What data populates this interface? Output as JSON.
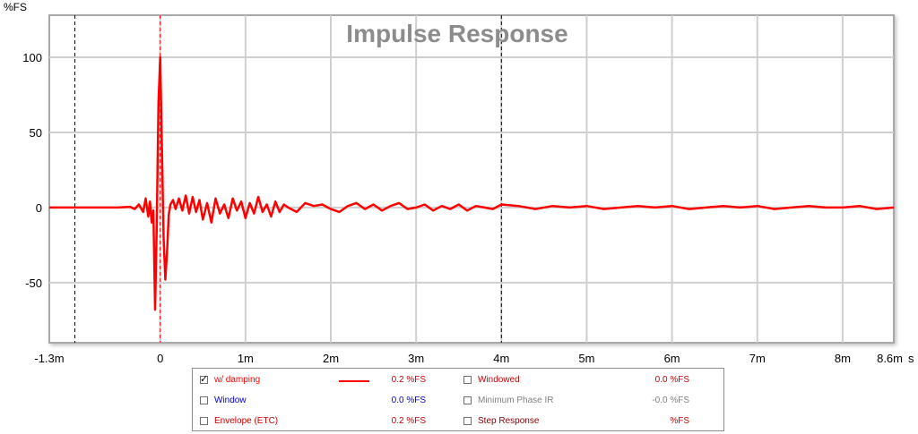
{
  "chart_data": {
    "type": "line",
    "title": "Impulse Response",
    "ylabel": "%FS",
    "xlabel": "",
    "xunit": "s",
    "xlim": [
      -1.3,
      8.6
    ],
    "ylim": [
      -90,
      128
    ],
    "xticks": [
      {
        "v": -1.3,
        "label": "-1.3m"
      },
      {
        "v": 0,
        "label": "0"
      },
      {
        "v": 1,
        "label": "1m"
      },
      {
        "v": 2,
        "label": "2m"
      },
      {
        "v": 3,
        "label": "3m"
      },
      {
        "v": 4,
        "label": "4m"
      },
      {
        "v": 5,
        "label": "5m"
      },
      {
        "v": 6,
        "label": "6m"
      },
      {
        "v": 7,
        "label": "7m"
      },
      {
        "v": 8,
        "label": "8m"
      },
      {
        "v": 8.6,
        "label": "8.6m"
      }
    ],
    "yticks": [
      {
        "v": 100,
        "label": "100"
      },
      {
        "v": 50,
        "label": "50"
      },
      {
        "v": 0,
        "label": "0"
      },
      {
        "v": -50,
        "label": "-50"
      }
    ],
    "grid": true,
    "markers": [
      {
        "x": -1.0,
        "color": "#000000"
      },
      {
        "x": 0,
        "color": "#ff0000"
      },
      {
        "x": 4.0,
        "color": "#000000"
      }
    ],
    "series": [
      {
        "name": "w/ damping",
        "color": "#ff0000",
        "x": [
          -1.3,
          -1.0,
          -0.5,
          -0.35,
          -0.3,
          -0.25,
          -0.2,
          -0.17,
          -0.14,
          -0.12,
          -0.1,
          -0.08,
          -0.06,
          -0.04,
          -0.02,
          0,
          0.02,
          0.04,
          0.06,
          0.08,
          0.1,
          0.12,
          0.15,
          0.18,
          0.22,
          0.26,
          0.3,
          0.34,
          0.38,
          0.42,
          0.46,
          0.5,
          0.55,
          0.6,
          0.65,
          0.7,
          0.75,
          0.8,
          0.85,
          0.9,
          0.95,
          1.0,
          1.05,
          1.1,
          1.15,
          1.2,
          1.25,
          1.3,
          1.35,
          1.4,
          1.45,
          1.5,
          1.6,
          1.7,
          1.8,
          1.9,
          2.0,
          2.1,
          2.2,
          2.3,
          2.4,
          2.5,
          2.6,
          2.7,
          2.8,
          2.9,
          3.0,
          3.1,
          3.2,
          3.3,
          3.4,
          3.5,
          3.6,
          3.7,
          3.8,
          3.9,
          4.0,
          4.2,
          4.4,
          4.6,
          4.8,
          5.0,
          5.2,
          5.4,
          5.6,
          5.8,
          6.0,
          6.2,
          6.4,
          6.6,
          6.8,
          7.0,
          7.2,
          7.4,
          7.6,
          7.8,
          8.0,
          8.2,
          8.4,
          8.6
        ],
        "y": [
          0,
          0,
          0,
          0.5,
          -1,
          2,
          -3,
          6,
          -6,
          4,
          -10,
          -2,
          -68,
          -10,
          70,
          100,
          40,
          -20,
          -48,
          -30,
          -5,
          2,
          5,
          -1,
          6,
          -2,
          8,
          -4,
          7,
          -3,
          5,
          -8,
          3,
          -10,
          6,
          -4,
          2,
          -7,
          6,
          -2,
          4,
          -7,
          3,
          -4,
          7,
          -3,
          2,
          -6,
          4,
          -3,
          2,
          0,
          -3,
          3,
          1,
          2,
          -1,
          -3,
          1,
          3,
          -1,
          2,
          -2,
          1,
          3,
          -1,
          0,
          2,
          -2,
          1,
          -1,
          2,
          -2,
          1,
          0,
          -1,
          2,
          1,
          -1,
          1,
          0,
          1,
          -1,
          0,
          1,
          0,
          1,
          -1,
          0,
          1,
          0,
          1,
          -1,
          0,
          1,
          0,
          0,
          1,
          -1,
          0
        ]
      }
    ]
  },
  "legend": {
    "rows": [
      {
        "left": {
          "label": "w/ damping",
          "checked": true,
          "color": "#ff0000",
          "value": "0.2 %FS",
          "value_color": "#cc0000",
          "swatch": "#ff0000"
        },
        "right": {
          "label": "Windowed",
          "checked": false,
          "color": "#cc0000",
          "value": "0.0 %FS",
          "value_color": "#cc0000"
        }
      },
      {
        "left": {
          "label": "Window",
          "checked": false,
          "color": "#0000cc",
          "value": "0.0 %FS",
          "value_color": "#0000cc"
        },
        "right": {
          "label": "Minimum Phase IR",
          "checked": false,
          "color": "#808080",
          "value": "-0.0 %FS",
          "value_color": "#808080"
        }
      },
      {
        "left": {
          "label": "Envelope (ETC)",
          "checked": false,
          "color": "#cc0000",
          "value": "0.2 %FS",
          "value_color": "#cc0000"
        },
        "right": {
          "label": "Step Response",
          "checked": false,
          "color": "#800000",
          "value": "%FS",
          "value_color": "#cc0000"
        }
      }
    ]
  }
}
